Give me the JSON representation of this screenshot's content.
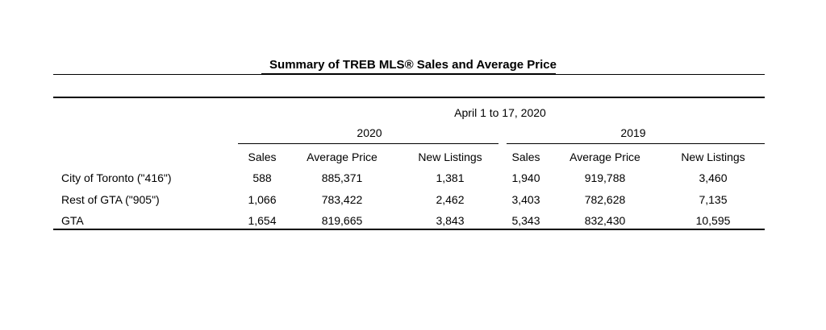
{
  "title": "Summary of TREB MLS®  Sales and Average Price",
  "period": "April 1 to 17, 2020",
  "years": [
    "2020",
    "2019"
  ],
  "columns": [
    "Sales",
    "Average Price",
    "New Listings",
    "Sales",
    "Average Price",
    "New Listings"
  ],
  "rows": [
    {
      "label": "City of Toronto (\"416\")",
      "values": [
        "588",
        "885,371",
        "1,381",
        "1,940",
        "919,788",
        "3,460"
      ]
    },
    {
      "label": "Rest of GTA (\"905\")",
      "values": [
        "1,066",
        "783,422",
        "2,462",
        "3,403",
        "782,628",
        "7,135"
      ]
    },
    {
      "label": "GTA",
      "values": [
        "1,654",
        "819,665",
        "3,843",
        "5,343",
        "832,430",
        "10,595"
      ]
    }
  ]
}
